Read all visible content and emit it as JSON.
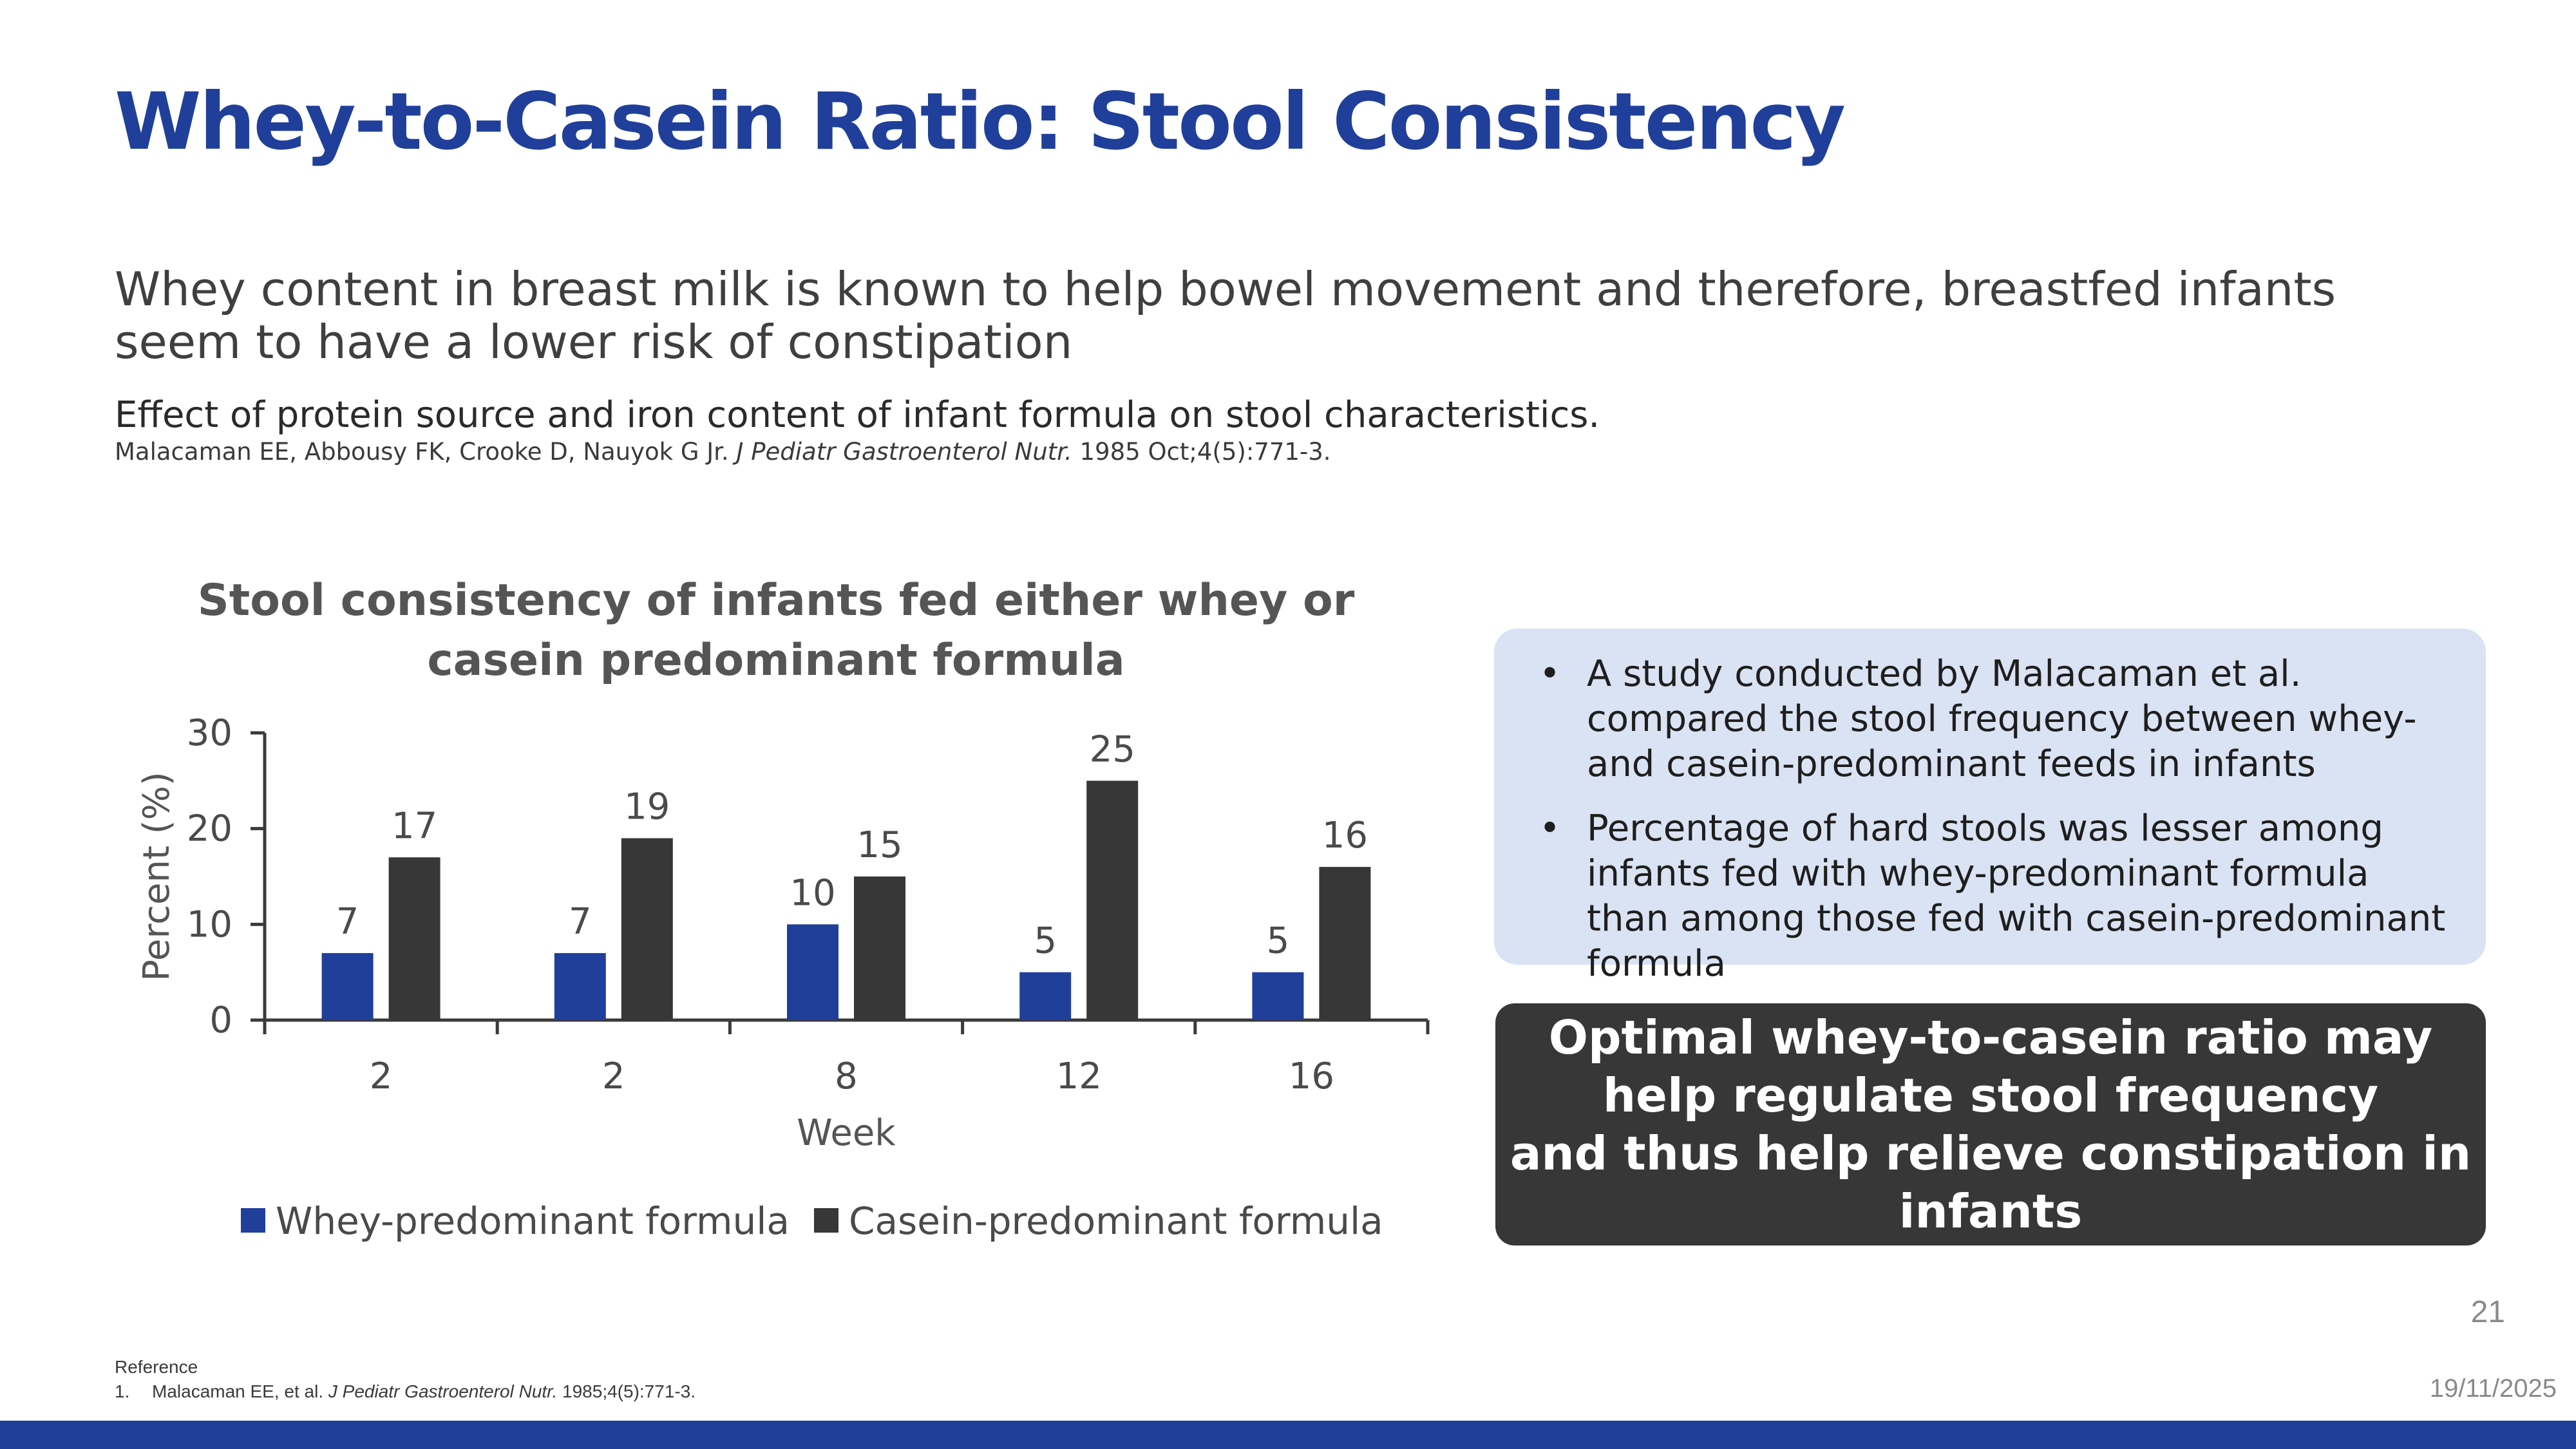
{
  "title": "Whey-to-Casein Ratio: Stool Consistency",
  "lead": "Whey content in breast milk is known to help bowel movement and therefore, breastfed infants seem to have a lower risk of constipation",
  "study": {
    "title": "Effect of protein source and iron content of infant formula on stool characteristics.",
    "authors": "Malacaman EE, Abbousy FK, Crooke D, Nauyok G Jr.",
    "journal": "J Pediatr Gastroenterol Nutr.",
    "details": "1985 Oct;4(5):771-3."
  },
  "chart_data": {
    "type": "bar",
    "title": "Stool consistency of infants fed either whey or casein predominant formula",
    "title_lines": [
      "Stool consistency of infants fed either whey or",
      "casein predominant formula"
    ],
    "categories": [
      "2",
      "2",
      "8",
      "12",
      "16"
    ],
    "xlabel": "Week",
    "ylabel": "Percent (%)",
    "ylim": [
      0,
      30
    ],
    "yticks": [
      0,
      10,
      20,
      30
    ],
    "legend_position": "bottom",
    "series": [
      {
        "name": "Whey-predominant formula",
        "color": "#203f9a",
        "values": [
          7,
          7,
          10,
          5,
          5
        ]
      },
      {
        "name": "Casein-predominant formula",
        "color": "#373737",
        "values": [
          17,
          19,
          15,
          25,
          16
        ]
      }
    ]
  },
  "info": {
    "bullet_char": "•",
    "bullets": [
      "A study conducted by Malacaman et al. compared the stool frequency between whey- and casein-predominant feeds in infants",
      "Percentage of hard stools was lesser among infants fed with whey-predominant formula than among those fed with casein-predominant formula"
    ]
  },
  "callout": {
    "line1": "Optimal whey-to-casein ratio may help regulate stool frequency",
    "line2": "and thus help relieve constipation in infants"
  },
  "page_number": "21",
  "references": {
    "heading": "Reference",
    "items": [
      {
        "num": "1.",
        "authors": "Malacaman EE, et al.",
        "journal": "J Pediatr Gastroenterol Nutr.",
        "details": "1985;4(5):771-3."
      }
    ]
  },
  "date": "19/11/2025",
  "colors": {
    "brand": "#203f9a",
    "dark": "#373737",
    "info_bg": "#dae3f3"
  }
}
